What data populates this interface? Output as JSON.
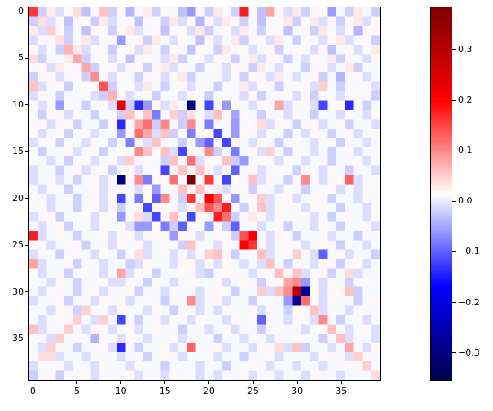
{
  "figure": {
    "background": "#ffffff"
  },
  "chart_data": {
    "type": "heatmap",
    "title": "",
    "xlabel": "",
    "ylabel": "",
    "n_rows": 40,
    "n_cols": 40,
    "x_ticks": [
      0,
      5,
      10,
      15,
      20,
      25,
      30,
      35
    ],
    "y_ticks": [
      0,
      5,
      10,
      15,
      20,
      25,
      30,
      35
    ],
    "colormap": "seismic",
    "color_scale": {
      "vmin": -0.355,
      "vmax": 0.385
    },
    "colorbar_tick_labels": [
      "0.3",
      "0.2",
      "0.1",
      "0.0",
      "−0.1",
      "−0.2",
      "−0.3"
    ],
    "colorbar_tick_values": [
      0.3,
      0.2,
      0.1,
      0.0,
      -0.1,
      -0.2,
      -0.3
    ],
    "legend_position": "right-colorbar",
    "grid": false,
    "matrix_scale": 0.01,
    "matrix": [
      [
        16,
        -2,
        3,
        -1,
        2,
        4,
        -3,
        1,
        6,
        -2,
        2,
        -4,
        1,
        3,
        -2,
        2,
        1,
        -3,
        -6,
        2,
        -2,
        3,
        1,
        -2,
        18,
        2,
        -3,
        8,
        2,
        -1,
        3,
        -2,
        1,
        2,
        -6,
        1,
        -2,
        3,
        1,
        -2
      ],
      [
        -2,
        4,
        -1,
        2,
        -3,
        1,
        2,
        -2,
        3,
        -1,
        1,
        2,
        -3,
        2,
        1,
        -2,
        3,
        -1,
        2,
        -4,
        2,
        -1,
        3,
        1,
        -2,
        2,
        -3,
        1,
        2,
        3,
        -2,
        1,
        3,
        -1,
        2,
        -2,
        1,
        3,
        -1,
        2
      ],
      [
        3,
        -1,
        5,
        2,
        -2,
        1,
        -3,
        2,
        1,
        -2,
        2,
        3,
        -1,
        1,
        2,
        -3,
        1,
        2,
        -1,
        3,
        -2,
        1,
        2,
        -1,
        3,
        1,
        -2,
        2,
        1,
        -3,
        1,
        2,
        -2,
        3,
        1,
        -1,
        2,
        -4,
        1,
        2
      ],
      [
        -1,
        2,
        1,
        4,
        -2,
        1,
        3,
        -1,
        2,
        1,
        -6,
        1,
        2,
        -2,
        3,
        1,
        -1,
        2,
        1,
        -3,
        2,
        -1,
        1,
        3,
        -2,
        1,
        2,
        -1,
        3,
        1,
        -2,
        2,
        1,
        -1,
        2,
        3,
        -1,
        1,
        2,
        -2
      ],
      [
        2,
        -1,
        1,
        -2,
        7,
        3,
        -1,
        2,
        1,
        -2,
        1,
        2,
        -1,
        3,
        1,
        -2,
        2,
        1,
        -3,
        2,
        1,
        -2,
        3,
        1,
        2,
        -1,
        1,
        2,
        -2,
        1,
        2,
        1,
        -1,
        2,
        -3,
        1,
        2,
        -1,
        1,
        3
      ],
      [
        4,
        -2,
        1,
        1,
        3,
        8,
        -2,
        1,
        2,
        -1,
        2,
        -3,
        1,
        2,
        1,
        -1,
        3,
        -2,
        1,
        2,
        -1,
        2,
        1,
        -2,
        1,
        3,
        -1,
        2,
        1,
        -2,
        1,
        -1,
        2,
        1,
        3,
        -2,
        1,
        1,
        -1,
        2
      ],
      [
        1,
        2,
        -1,
        3,
        2,
        1,
        8,
        -2,
        1,
        2,
        -1,
        1,
        2,
        -2,
        1,
        3,
        -1,
        2,
        1,
        -2,
        2,
        1,
        -1,
        2,
        1,
        -2,
        3,
        1,
        -1,
        2,
        1,
        -2,
        1,
        2,
        -1,
        1,
        3,
        -2,
        1,
        1
      ],
      [
        -2,
        1,
        2,
        -1,
        1,
        2,
        -2,
        10,
        1,
        -1,
        2,
        1,
        -2,
        1,
        2,
        -1,
        1,
        3,
        -2,
        1,
        1,
        2,
        -1,
        1,
        -2,
        2,
        1,
        -1,
        3,
        1,
        -1,
        1,
        2,
        -2,
        1,
        -4,
        1,
        2,
        -1,
        1
      ],
      [
        6,
        -1,
        1,
        2,
        -2,
        1,
        2,
        1,
        14,
        -2,
        1,
        2,
        -1,
        3,
        1,
        -2,
        1,
        2,
        -1,
        1,
        2,
        -2,
        1,
        1,
        3,
        -1,
        2,
        1,
        -2,
        1,
        1,
        2,
        -1,
        5,
        1,
        -2,
        1,
        1,
        2,
        -1
      ],
      [
        -1,
        2,
        1,
        -2,
        1,
        1,
        2,
        -1,
        -2,
        7,
        2,
        -1,
        1,
        2,
        -2,
        1,
        1,
        -1,
        2,
        1,
        -2,
        1,
        2,
        1,
        -1,
        2,
        -2,
        1,
        1,
        2,
        -1,
        1,
        -2,
        1,
        2,
        -1,
        1,
        2,
        1,
        -2
      ],
      [
        2,
        -1,
        1,
        -6,
        2,
        1,
        -2,
        1,
        2,
        -1,
        24,
        -2,
        -14,
        -6,
        2,
        -1,
        3,
        1,
        -30,
        2,
        -12,
        1,
        -6,
        2,
        1,
        -1,
        2,
        1,
        8,
        -1,
        1,
        2,
        -1,
        -12,
        1,
        2,
        -14,
        1,
        -2,
        1
      ],
      [
        1,
        -2,
        2,
        1,
        -1,
        2,
        1,
        -2,
        1,
        2,
        -2,
        6,
        2,
        6,
        -8,
        1,
        5,
        -2,
        4,
        1,
        -1,
        6,
        1,
        -5,
        2,
        1,
        -2,
        1,
        1,
        -1,
        2,
        1,
        -2,
        1,
        1,
        -1,
        2,
        1,
        -1,
        2
      ],
      [
        1,
        2,
        -1,
        1,
        2,
        -2,
        1,
        1,
        -2,
        2,
        -14,
        2,
        8,
        12,
        -2,
        10,
        1,
        -2,
        10,
        1,
        -8,
        2,
        1,
        -6,
        1,
        2,
        4,
        -1,
        2,
        1,
        -2,
        1,
        2,
        -1,
        1,
        2,
        -2,
        1,
        1,
        -1
      ],
      [
        2,
        -1,
        1,
        2,
        -2,
        1,
        2,
        -1,
        1,
        1,
        -6,
        2,
        12,
        8,
        -1,
        6,
        -2,
        2,
        -8,
        1,
        2,
        -12,
        1,
        -6,
        2,
        1,
        -1,
        2,
        1,
        -2,
        1,
        -1,
        2,
        1,
        -2,
        1,
        2,
        -1,
        1,
        2
      ],
      [
        -1,
        1,
        2,
        -2,
        1,
        1,
        -1,
        2,
        1,
        -2,
        1,
        -8,
        2,
        -1,
        6,
        2,
        1,
        -2,
        1,
        -6,
        -10,
        1,
        -12,
        2,
        1,
        -1,
        2,
        1,
        -2,
        1,
        2,
        1,
        -1,
        1,
        2,
        -2,
        1,
        1,
        -1,
        1
      ],
      [
        1,
        -2,
        1,
        1,
        2,
        -1,
        1,
        2,
        -2,
        1,
        2,
        1,
        10,
        6,
        2,
        6,
        -1,
        -12,
        2,
        1,
        10,
        -2,
        1,
        -8,
        1,
        2,
        -1,
        5,
        1,
        -2,
        1,
        2,
        -1,
        1,
        -2,
        1,
        2,
        -1,
        1,
        1
      ],
      [
        2,
        1,
        -1,
        1,
        -2,
        1,
        2,
        -1,
        1,
        2,
        -1,
        5,
        1,
        2,
        1,
        -2,
        6,
        1,
        12,
        -1,
        2,
        1,
        6,
        -2,
        -6,
        1,
        2,
        1,
        -1,
        2,
        1,
        -1,
        1,
        2,
        -2,
        1,
        1,
        2,
        -1,
        1
      ],
      [
        -1,
        1,
        1,
        -2,
        1,
        2,
        -1,
        1,
        2,
        -2,
        1,
        2,
        -1,
        1,
        2,
        -12,
        1,
        6,
        2,
        6,
        1,
        -1,
        2,
        -10,
        1,
        2,
        -1,
        1,
        2,
        1,
        -2,
        1,
        1,
        -1,
        2,
        1,
        -2,
        1,
        1,
        -1
      ],
      [
        -1,
        1,
        2,
        -1,
        1,
        -2,
        1,
        2,
        -1,
        1,
        -30,
        2,
        10,
        -8,
        1,
        2,
        12,
        1,
        40,
        2,
        16,
        1,
        -12,
        2,
        1,
        6,
        -1,
        2,
        1,
        -2,
        1,
        10,
        2,
        -1,
        1,
        2,
        13,
        -1,
        1,
        2
      ],
      [
        1,
        -1,
        2,
        1,
        -2,
        1,
        1,
        2,
        -1,
        1,
        2,
        1,
        -1,
        2,
        -6,
        1,
        2,
        6,
        2,
        6,
        1,
        3,
        -1,
        1,
        2,
        -2,
        1,
        1,
        -1,
        2,
        1,
        -2,
        1,
        1,
        2,
        -1,
        1,
        -1,
        2,
        1
      ],
      [
        2,
        1,
        -1,
        1,
        2,
        -2,
        1,
        1,
        -1,
        2,
        -12,
        1,
        -8,
        2,
        -10,
        10,
        1,
        -2,
        16,
        1,
        20,
        14,
        2,
        -6,
        1,
        2,
        5,
        -1,
        1,
        2,
        -1,
        1,
        2,
        1,
        -2,
        1,
        1,
        -1,
        2,
        1
      ],
      [
        1,
        2,
        -1,
        1,
        1,
        -2,
        1,
        2,
        -1,
        1,
        -2,
        1,
        2,
        -12,
        1,
        2,
        1,
        -1,
        2,
        6,
        14,
        10,
        18,
        1,
        -2,
        1,
        6,
        -1,
        2,
        1,
        2,
        -1,
        1,
        2,
        1,
        -2,
        1,
        1,
        -1,
        2
      ],
      [
        -1,
        1,
        2,
        -2,
        1,
        1,
        2,
        -1,
        1,
        2,
        -6,
        2,
        4,
        -1,
        -12,
        2,
        6,
        1,
        -12,
        2,
        1,
        18,
        12,
        -2,
        1,
        3,
        1,
        -1,
        2,
        1,
        1,
        2,
        -1,
        1,
        -2,
        1,
        2,
        1,
        -1,
        1
      ],
      [
        1,
        -1,
        1,
        2,
        -2,
        1,
        1,
        -1,
        2,
        1,
        2,
        -1,
        -6,
        -6,
        2,
        -8,
        -2,
        -10,
        2,
        1,
        -6,
        1,
        -2,
        -10,
        1,
        2,
        -1,
        1,
        1,
        -2,
        1,
        1,
        -1,
        2,
        1,
        -2,
        1,
        1,
        2,
        -1
      ],
      [
        18,
        -1,
        1,
        2,
        1,
        -2,
        1,
        1,
        2,
        -1,
        1,
        2,
        -1,
        1,
        2,
        1,
        -6,
        2,
        1,
        -1,
        1,
        2,
        1,
        -2,
        14,
        20,
        1,
        -1,
        2,
        1,
        -2,
        1,
        1,
        2,
        -1,
        1,
        1,
        -2,
        1,
        1
      ],
      [
        2,
        1,
        -1,
        1,
        2,
        1,
        -2,
        1,
        1,
        -1,
        2,
        1,
        2,
        -1,
        1,
        2,
        1,
        -2,
        6,
        1,
        1,
        -1,
        2,
        1,
        20,
        16,
        2,
        -1,
        1,
        2,
        1,
        -1,
        1,
        2,
        1,
        -2,
        1,
        1,
        -1,
        1
      ],
      [
        -1,
        1,
        1,
        -2,
        1,
        2,
        1,
        -1,
        2,
        1,
        -2,
        1,
        4,
        -1,
        1,
        2,
        -1,
        1,
        -1,
        1,
        5,
        6,
        1,
        -2,
        1,
        2,
        6,
        -1,
        1,
        2,
        5,
        1,
        -1,
        -10,
        1,
        2,
        -1,
        1,
        1,
        -2
      ],
      [
        8,
        -1,
        1,
        1,
        2,
        -2,
        1,
        1,
        -1,
        1,
        1,
        -2,
        -1,
        2,
        1,
        1,
        -1,
        2,
        2,
        -1,
        1,
        -1,
        2,
        1,
        -1,
        1,
        -1,
        6,
        1,
        -2,
        1,
        1,
        -1,
        2,
        1,
        -2,
        1,
        2,
        -1,
        1
      ],
      [
        2,
        -1,
        1,
        1,
        -2,
        1,
        2,
        1,
        -1,
        1,
        8,
        -1,
        2,
        1,
        -2,
        1,
        1,
        2,
        1,
        -1,
        -2,
        1,
        2,
        1,
        1,
        -1,
        1,
        1,
        6,
        2,
        6,
        -1,
        1,
        2,
        -2,
        1,
        4,
        -1,
        1,
        1
      ],
      [
        1,
        1,
        -1,
        2,
        1,
        -2,
        1,
        1,
        2,
        -1,
        -1,
        1,
        1,
        -2,
        2,
        1,
        -1,
        1,
        2,
        1,
        1,
        2,
        -1,
        1,
        2,
        1,
        -2,
        1,
        2,
        8,
        10,
        -6,
        1,
        -1,
        2,
        1,
        -2,
        1,
        1,
        2
      ],
      [
        1,
        -1,
        2,
        1,
        1,
        -2,
        1,
        2,
        -1,
        1,
        1,
        2,
        -2,
        1,
        1,
        -1,
        2,
        1,
        1,
        -1,
        1,
        2,
        1,
        -2,
        1,
        1,
        5,
        -1,
        6,
        10,
        30,
        -28,
        2,
        -1,
        1,
        2,
        6,
        -2,
        1,
        1
      ],
      [
        -1,
        1,
        1,
        2,
        -2,
        1,
        1,
        -1,
        2,
        1,
        2,
        -1,
        1,
        2,
        1,
        -2,
        1,
        1,
        10,
        -1,
        1,
        2,
        -1,
        1,
        1,
        -2,
        1,
        2,
        1,
        -6,
        -28,
        12,
        1,
        -1,
        2,
        1,
        1,
        -2,
        1,
        2
      ],
      [
        1,
        1,
        -1,
        2,
        1,
        -2,
        5,
        1,
        1,
        -1,
        2,
        1,
        1,
        -1,
        2,
        1,
        -2,
        1,
        2,
        -1,
        1,
        -1,
        2,
        1,
        1,
        2,
        -1,
        1,
        1,
        -2,
        2,
        1,
        6,
        -1,
        1,
        1,
        -1,
        2,
        1,
        1
      ],
      [
        1,
        -1,
        1,
        2,
        1,
        5,
        1,
        -1,
        5,
        1,
        -12,
        1,
        -2,
        1,
        1,
        -1,
        2,
        1,
        -1,
        2,
        1,
        1,
        -1,
        2,
        1,
        2,
        -10,
        1,
        1,
        -1,
        2,
        1,
        -1,
        10,
        1,
        -2,
        1,
        1,
        -1,
        1
      ],
      [
        6,
        -1,
        1,
        1,
        5,
        1,
        -1,
        2,
        1,
        -1,
        1,
        2,
        -1,
        1,
        2,
        1,
        1,
        -2,
        1,
        1,
        -1,
        1,
        2,
        -1,
        1,
        1,
        -2,
        1,
        2,
        1,
        1,
        -1,
        1,
        2,
        6,
        1,
        -1,
        1,
        2,
        -1
      ],
      [
        1,
        1,
        -1,
        5,
        1,
        2,
        1,
        -4,
        1,
        1,
        -1,
        2,
        1,
        -1,
        1,
        1,
        2,
        -1,
        2,
        1,
        1,
        -2,
        1,
        1,
        -1,
        2,
        1,
        -1,
        1,
        1,
        2,
        1,
        1,
        -2,
        1,
        6,
        -1,
        1,
        1,
        -1
      ],
      [
        1,
        -1,
        5,
        1,
        1,
        -2,
        1,
        1,
        2,
        -1,
        -14,
        1,
        -2,
        1,
        1,
        2,
        -1,
        1,
        13,
        1,
        1,
        2,
        -1,
        1,
        1,
        -1,
        2,
        1,
        4,
        -1,
        6,
        -2,
        1,
        1,
        -1,
        1,
        8,
        1,
        -1,
        2
      ],
      [
        1,
        4,
        4,
        -1,
        1,
        1,
        -1,
        2,
        1,
        1,
        -1,
        1,
        1,
        -2,
        1,
        2,
        1,
        -1,
        1,
        1,
        2,
        -1,
        1,
        1,
        -2,
        1,
        1,
        2,
        -1,
        1,
        1,
        1,
        -1,
        2,
        1,
        1,
        -1,
        5,
        1,
        1
      ],
      [
        -1,
        1,
        1,
        2,
        -1,
        1,
        1,
        -1,
        2,
        1,
        1,
        -1,
        2,
        1,
        1,
        -2,
        1,
        1,
        1,
        -1,
        1,
        1,
        -2,
        1,
        1,
        2,
        1,
        -1,
        1,
        1,
        -1,
        1,
        1,
        -1,
        1,
        1,
        2,
        1,
        5,
        1
      ],
      [
        -2,
        1,
        2,
        -2,
        1,
        1,
        2,
        -1,
        1,
        1,
        1,
        2,
        -1,
        1,
        1,
        -1,
        2,
        1,
        2,
        -1,
        1,
        -1,
        1,
        1,
        2,
        -1,
        1,
        1,
        -1,
        1,
        1,
        -1,
        2,
        1,
        1,
        -1,
        1,
        1,
        1,
        4
      ]
    ]
  }
}
